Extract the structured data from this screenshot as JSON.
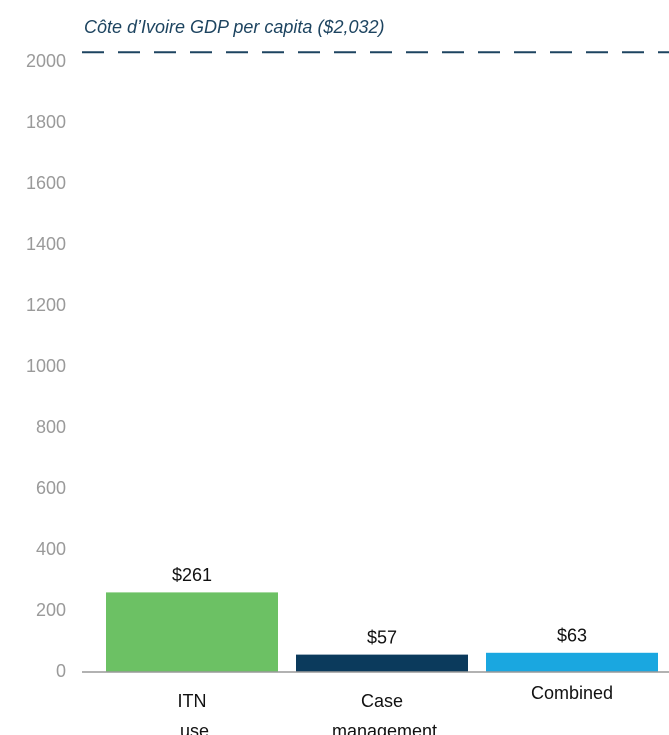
{
  "chart_data": {
    "type": "bar",
    "categories": [
      "ITN use",
      "Case management",
      "Combined"
    ],
    "values": [
      261,
      57,
      63
    ],
    "value_labels": [
      "$261",
      "$57",
      "$63"
    ],
    "colors": [
      "#6cc164",
      "#0b3a5c",
      "#1aa7e0"
    ],
    "ylim": [
      0,
      2000
    ],
    "yticks": [
      0,
      200,
      400,
      600,
      800,
      1000,
      1200,
      1400,
      1600,
      1800,
      2000
    ],
    "reference_line": {
      "value": 2032,
      "label": "Côte d’Ivoire GDP per capita ($2,032)",
      "color": "#1d4460"
    }
  }
}
